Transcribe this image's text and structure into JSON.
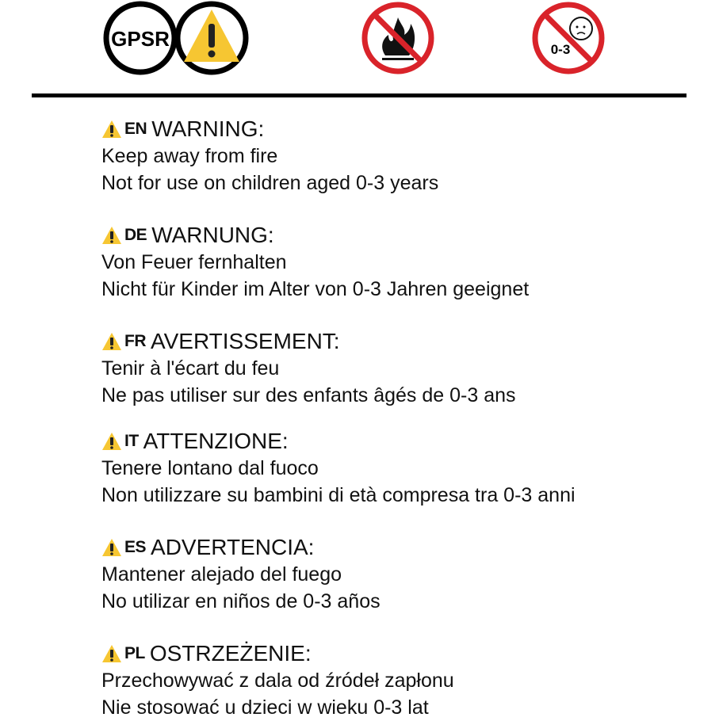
{
  "header_icons": {
    "gpsr_label": "GPSR",
    "icons": [
      "gpsr-badge-icon",
      "warning-triangle-icon",
      "no-fire-icon",
      "not-for-children-0-3-icon"
    ],
    "age_label": "0-3"
  },
  "colors": {
    "warning_yellow": "#f6c632",
    "prohibition_red": "#d9232a",
    "text": "#111111"
  },
  "sections": [
    {
      "code": "EN",
      "title": "WARNING:",
      "lines": [
        "Keep away from fire",
        "Not for use on children aged 0-3 years"
      ]
    },
    {
      "code": "DE",
      "title": "WARNUNG:",
      "lines": [
        "Von Feuer fernhalten",
        "Nicht für Kinder im Alter von 0-3 Jahren geeignet"
      ]
    },
    {
      "code": "FR",
      "title": "AVERTISSEMENT:",
      "lines": [
        "Tenir à l'écart du feu",
        "Ne pas utiliser sur des enfants âgés de 0-3 ans"
      ]
    },
    {
      "code": "IT",
      "title": "ATTENZIONE:",
      "lines": [
        "Tenere lontano dal fuoco",
        "Non utilizzare su bambini di età compresa tra 0-3 anni"
      ]
    },
    {
      "code": "ES",
      "title": "ADVERTENCIA:",
      "lines": [
        "Mantener alejado del fuego",
        "No utilizar en niños de 0-3 años"
      ]
    },
    {
      "code": "PL",
      "title": "OSTRZEŻENIE:",
      "lines": [
        "Przechowywać z dala od źródeł zapłonu",
        "Nie stosować u dzieci w wieku 0-3 lat"
      ]
    }
  ]
}
